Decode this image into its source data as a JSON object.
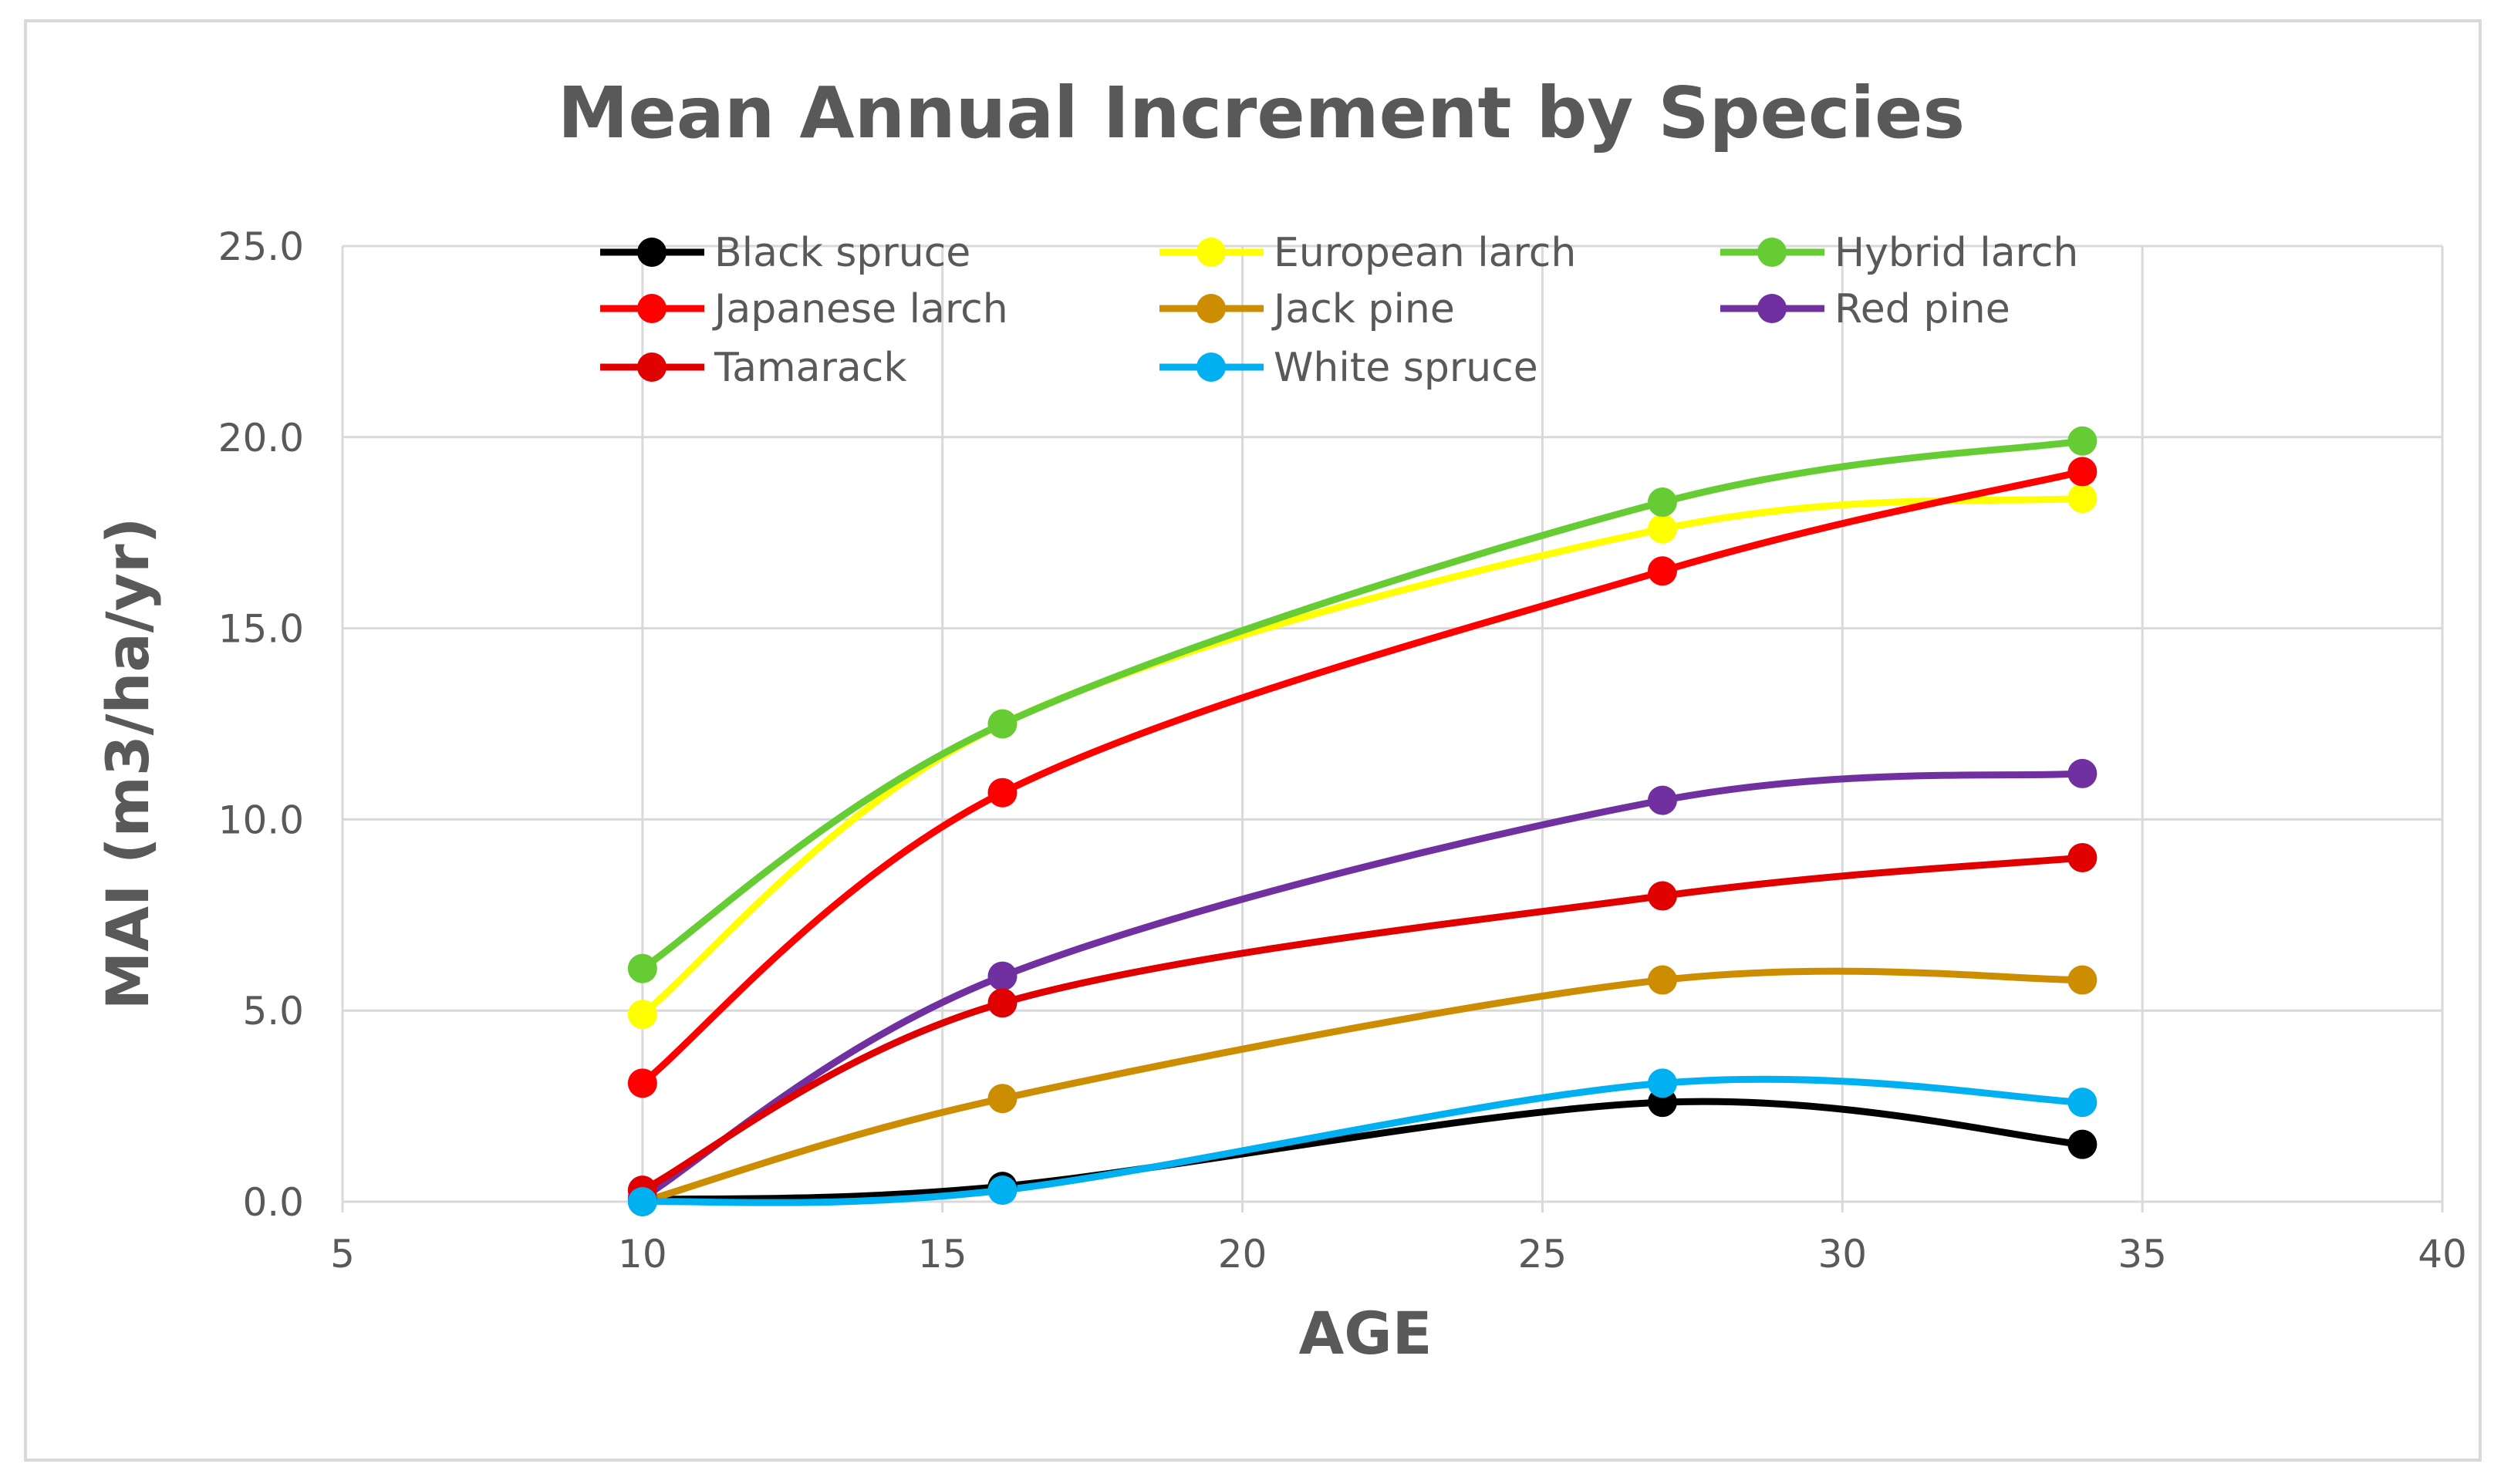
{
  "chart_data": {
    "type": "line",
    "title": "Mean Annual Increment by Species",
    "xlabel": "AGE",
    "ylabel": "MAI (m3/ha/yr)",
    "xlim": [
      5,
      40
    ],
    "ylim": [
      0,
      25
    ],
    "xticks": [
      5,
      10,
      15,
      20,
      25,
      30,
      35,
      40
    ],
    "yticks": [
      "0.0",
      "5.0",
      "10.0",
      "15.0",
      "20.0",
      "25.0"
    ],
    "grid": true,
    "smooth": true,
    "legend_position": "top-left-inside",
    "x": [
      10,
      16,
      27,
      34
    ],
    "series": [
      {
        "name": "Black spruce",
        "color": "#000000",
        "values": [
          0.05,
          0.4,
          2.6,
          1.5
        ]
      },
      {
        "name": "European larch",
        "color": "#FFFF00",
        "values": [
          4.9,
          12.5,
          17.6,
          18.4
        ]
      },
      {
        "name": "Hybrid larch",
        "color": "#66CC33",
        "values": [
          6.1,
          12.5,
          18.3,
          19.9
        ]
      },
      {
        "name": "Japanese larch",
        "color": "#FF0000",
        "values": [
          3.1,
          10.7,
          16.5,
          19.1
        ]
      },
      {
        "name": "Jack pine",
        "color": "#CC8E00",
        "values": [
          0.0,
          2.7,
          5.8,
          5.8
        ]
      },
      {
        "name": "Red pine",
        "color": "#7030A0",
        "values": [
          0.1,
          5.9,
          10.5,
          11.2
        ]
      },
      {
        "name": "Tamarack",
        "color": "#E00000",
        "values": [
          0.3,
          5.2,
          8.0,
          9.0
        ]
      },
      {
        "name": "White spruce",
        "color": "#00B0F0",
        "values": [
          0.0,
          0.3,
          3.1,
          2.6
        ]
      }
    ]
  }
}
